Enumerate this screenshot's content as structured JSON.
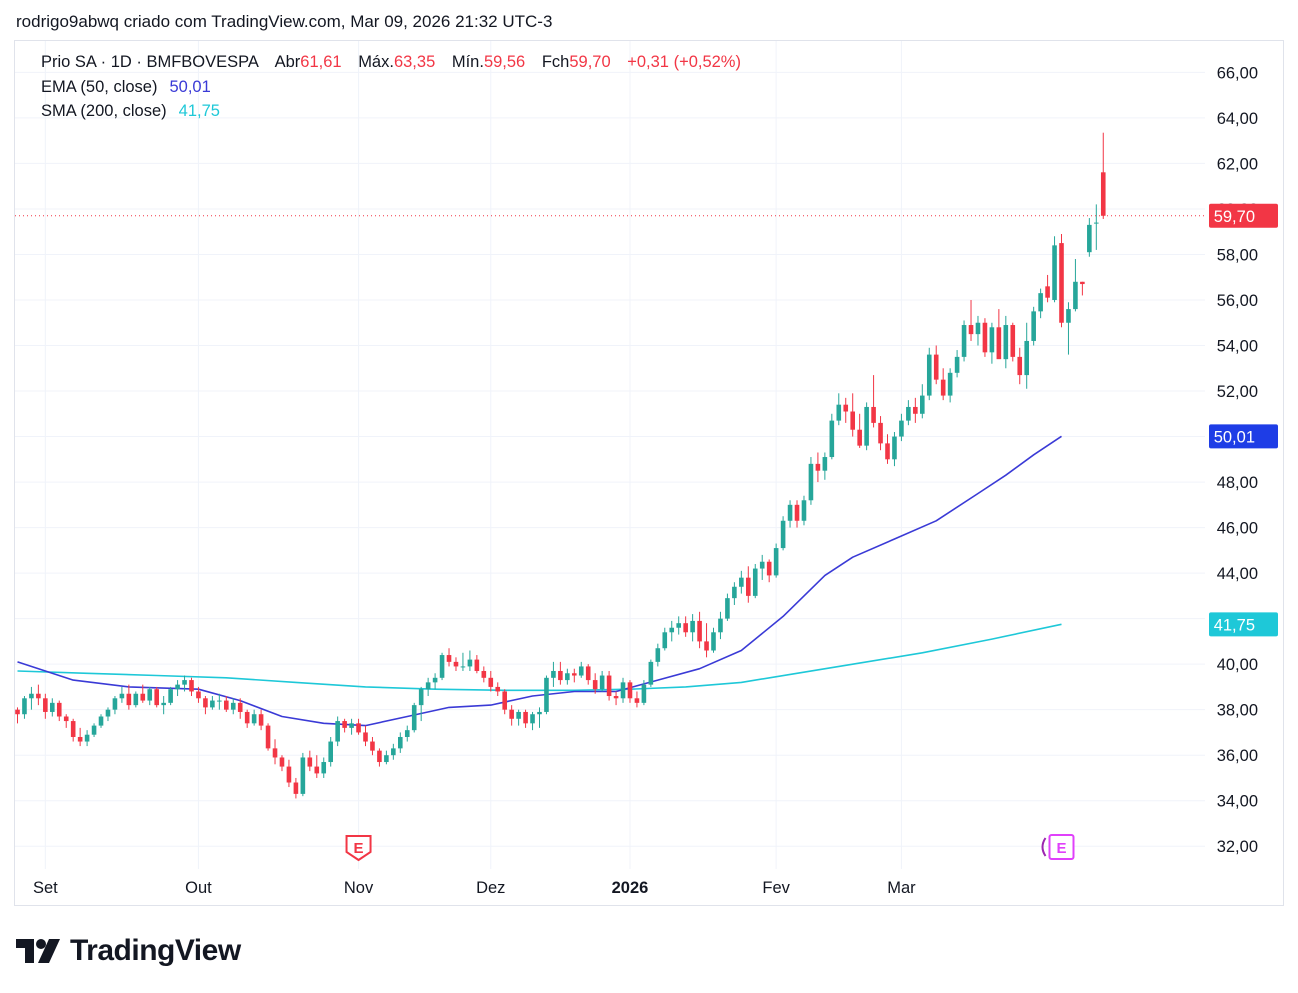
{
  "header": {
    "text": "rodrigo9abwq criado com TradingView.com, Mar 09, 2026 21:32 UTC-3"
  },
  "legend": {
    "symbol": "Prio SA · 1D · BMFBOVESPA",
    "open_label": "Abr",
    "open": "61,61",
    "high_label": "Máx.",
    "high": "63,35",
    "low_label": "Mín.",
    "low": "59,56",
    "close_label": "Fch",
    "close": "59,70",
    "change": "+0,31 (+0,52%)",
    "ema_label": "EMA (50, close)",
    "ema_value": "50,01",
    "sma_label": "SMA (200, close)",
    "sma_value": "41,75"
  },
  "brand": {
    "name": "TradingView"
  },
  "colors": {
    "up": "#26a69a",
    "down": "#f23645",
    "ema": "#3a3ad6",
    "sma": "#1ec8d8",
    "grid": "#f0f3fa",
    "axis_text": "#131722",
    "earnings_red": "#f23645",
    "earnings_pink": "#e040fb"
  },
  "chart_data": {
    "type": "candlestick",
    "title": "Prio SA · 1D · BMFBOVESPA",
    "y_axis": {
      "min": 31,
      "max": 66.5,
      "ticks": [
        "66,00",
        "64,00",
        "62,00",
        "60,00",
        "58,00",
        "56,00",
        "54,00",
        "52,00",
        "50,00",
        "48,00",
        "46,00",
        "44,00",
        "42,00",
        "40,00",
        "38,00",
        "36,00",
        "34,00",
        "32,00"
      ]
    },
    "x_labels": [
      {
        "label": "Set",
        "index": 4,
        "bold": false
      },
      {
        "label": "Out",
        "index": 26,
        "bold": false
      },
      {
        "label": "Nov",
        "index": 49,
        "bold": false
      },
      {
        "label": "Dez",
        "index": 68,
        "bold": false
      },
      {
        "label": "2026",
        "index": 88,
        "bold": true
      },
      {
        "label": "Fev",
        "index": 109,
        "bold": false
      },
      {
        "label": "Mar",
        "index": 127,
        "bold": false
      }
    ],
    "candles": [
      [
        38.0,
        38.1,
        37.4,
        37.8
      ],
      [
        37.8,
        38.6,
        37.6,
        38.5
      ],
      [
        38.5,
        39.0,
        38.0,
        38.7
      ],
      [
        38.7,
        39.1,
        38.2,
        38.5
      ],
      [
        38.5,
        38.7,
        37.6,
        37.9
      ],
      [
        37.9,
        38.5,
        37.7,
        38.3
      ],
      [
        38.3,
        38.4,
        37.5,
        37.7
      ],
      [
        37.7,
        37.8,
        37.2,
        37.5
      ],
      [
        37.5,
        37.6,
        36.6,
        36.8
      ],
      [
        36.8,
        37.2,
        36.4,
        36.6
      ],
      [
        36.6,
        37.1,
        36.4,
        36.9
      ],
      [
        36.9,
        37.4,
        36.8,
        37.3
      ],
      [
        37.3,
        37.8,
        37.2,
        37.7
      ],
      [
        37.7,
        38.1,
        37.5,
        38.0
      ],
      [
        38.0,
        38.6,
        37.8,
        38.5
      ],
      [
        38.5,
        39.0,
        38.3,
        38.7
      ],
      [
        38.7,
        39.1,
        38.0,
        38.2
      ],
      [
        38.2,
        38.8,
        38.1,
        38.7
      ],
      [
        38.7,
        39.1,
        38.3,
        38.4
      ],
      [
        38.4,
        39.0,
        38.2,
        38.9
      ],
      [
        38.9,
        39.0,
        38.1,
        38.2
      ],
      [
        38.2,
        38.6,
        37.8,
        38.3
      ],
      [
        38.3,
        39.0,
        38.2,
        38.9
      ],
      [
        38.9,
        39.3,
        38.6,
        39.1
      ],
      [
        39.1,
        39.5,
        38.8,
        39.3
      ],
      [
        39.3,
        39.4,
        38.6,
        38.8
      ],
      [
        38.8,
        39.0,
        38.3,
        38.5
      ],
      [
        38.5,
        38.6,
        37.8,
        38.1
      ],
      [
        38.1,
        38.6,
        38.0,
        38.4
      ],
      [
        38.4,
        38.7,
        38.0,
        38.4
      ],
      [
        38.4,
        38.6,
        37.9,
        38.0
      ],
      [
        38.0,
        38.5,
        37.8,
        38.3
      ],
      [
        38.3,
        38.5,
        37.6,
        37.9
      ],
      [
        37.9,
        38.0,
        37.2,
        37.4
      ],
      [
        37.4,
        38.0,
        37.3,
        37.8
      ],
      [
        37.8,
        38.0,
        37.1,
        37.3
      ],
      [
        37.3,
        37.4,
        36.2,
        36.3
      ],
      [
        36.3,
        36.7,
        35.6,
        35.9
      ],
      [
        35.9,
        36.0,
        35.3,
        35.5
      ],
      [
        35.5,
        35.8,
        34.6,
        34.8
      ],
      [
        34.8,
        35.0,
        34.1,
        34.3
      ],
      [
        34.3,
        36.1,
        34.2,
        35.9
      ],
      [
        35.9,
        36.2,
        35.3,
        35.5
      ],
      [
        35.5,
        36.0,
        35.0,
        35.2
      ],
      [
        35.2,
        35.9,
        35.0,
        35.7
      ],
      [
        35.7,
        36.8,
        35.5,
        36.6
      ],
      [
        36.6,
        37.7,
        36.4,
        37.5
      ],
      [
        37.5,
        37.6,
        37.0,
        37.2
      ],
      [
        37.2,
        37.6,
        36.9,
        37.4
      ],
      [
        37.4,
        37.6,
        36.9,
        37.0
      ],
      [
        37.0,
        37.3,
        36.4,
        36.6
      ],
      [
        36.6,
        36.8,
        36.0,
        36.2
      ],
      [
        36.2,
        36.3,
        35.5,
        35.7
      ],
      [
        35.7,
        36.2,
        35.6,
        36.0
      ],
      [
        36.0,
        36.5,
        35.8,
        36.3
      ],
      [
        36.3,
        37.0,
        36.1,
        36.8
      ],
      [
        36.8,
        37.3,
        36.6,
        37.1
      ],
      [
        37.1,
        38.3,
        37.0,
        38.2
      ],
      [
        38.2,
        39.0,
        37.5,
        38.9
      ],
      [
        38.9,
        39.4,
        38.6,
        39.2
      ],
      [
        39.2,
        39.6,
        38.9,
        39.4
      ],
      [
        39.4,
        40.5,
        39.3,
        40.4
      ],
      [
        40.4,
        40.7,
        39.9,
        40.1
      ],
      [
        40.1,
        40.3,
        39.7,
        39.9
      ],
      [
        39.9,
        40.5,
        39.7,
        39.9
      ],
      [
        39.9,
        40.6,
        39.7,
        40.2
      ],
      [
        40.2,
        40.4,
        39.6,
        39.7
      ],
      [
        39.7,
        39.9,
        39.2,
        39.4
      ],
      [
        39.4,
        39.7,
        38.8,
        39.0
      ],
      [
        39.0,
        39.2,
        38.6,
        38.8
      ],
      [
        38.8,
        38.9,
        37.8,
        38.0
      ],
      [
        38.0,
        38.2,
        37.3,
        37.6
      ],
      [
        37.6,
        38.0,
        37.3,
        37.9
      ],
      [
        37.9,
        38.0,
        37.2,
        37.4
      ],
      [
        37.4,
        37.9,
        37.1,
        37.8
      ],
      [
        37.8,
        38.1,
        37.2,
        37.9
      ],
      [
        37.9,
        39.5,
        37.8,
        39.4
      ],
      [
        39.4,
        40.1,
        39.0,
        39.7
      ],
      [
        39.7,
        40.1,
        39.1,
        39.3
      ],
      [
        39.3,
        39.8,
        39.1,
        39.6
      ],
      [
        39.6,
        39.8,
        39.2,
        39.5
      ],
      [
        39.5,
        40.1,
        39.4,
        39.9
      ],
      [
        39.9,
        40.0,
        39.1,
        39.3
      ],
      [
        39.3,
        39.6,
        38.7,
        38.9
      ],
      [
        38.9,
        39.7,
        38.8,
        39.5
      ],
      [
        39.5,
        39.7,
        38.4,
        38.6
      ],
      [
        38.6,
        38.8,
        38.2,
        38.5
      ],
      [
        38.5,
        39.4,
        38.3,
        39.2
      ],
      [
        39.2,
        39.3,
        38.3,
        38.5
      ],
      [
        38.5,
        38.8,
        38.1,
        38.3
      ],
      [
        38.3,
        39.3,
        38.2,
        39.1
      ],
      [
        39.1,
        40.2,
        39.0,
        40.1
      ],
      [
        40.1,
        40.9,
        39.9,
        40.7
      ],
      [
        40.7,
        41.6,
        40.6,
        41.4
      ],
      [
        41.4,
        41.9,
        41.0,
        41.6
      ],
      [
        41.6,
        42.1,
        41.3,
        41.8
      ],
      [
        41.8,
        42.1,
        41.2,
        41.4
      ],
      [
        41.4,
        42.2,
        41.0,
        41.9
      ],
      [
        41.9,
        42.3,
        40.7,
        41.0
      ],
      [
        41.0,
        41.8,
        40.3,
        40.6
      ],
      [
        40.6,
        41.6,
        40.5,
        41.4
      ],
      [
        41.4,
        42.3,
        41.1,
        42.0
      ],
      [
        42.0,
        43.1,
        41.9,
        42.9
      ],
      [
        42.9,
        43.6,
        42.6,
        43.4
      ],
      [
        43.4,
        44.1,
        43.1,
        43.8
      ],
      [
        43.8,
        44.3,
        42.7,
        43.0
      ],
      [
        43.0,
        44.4,
        42.9,
        44.2
      ],
      [
        44.2,
        44.8,
        43.7,
        44.5
      ],
      [
        44.5,
        44.6,
        43.6,
        43.9
      ],
      [
        43.9,
        45.3,
        43.8,
        45.1
      ],
      [
        45.1,
        46.5,
        45.0,
        46.3
      ],
      [
        46.3,
        47.2,
        46.0,
        47.0
      ],
      [
        47.0,
        47.2,
        46.0,
        46.3
      ],
      [
        46.3,
        47.4,
        46.1,
        47.2
      ],
      [
        47.2,
        49.1,
        47.0,
        48.8
      ],
      [
        48.8,
        49.3,
        48.0,
        48.5
      ],
      [
        48.5,
        49.3,
        48.1,
        49.1
      ],
      [
        49.1,
        51.0,
        49.0,
        50.7
      ],
      [
        50.7,
        51.9,
        50.5,
        51.4
      ],
      [
        51.4,
        51.7,
        50.6,
        51.1
      ],
      [
        51.1,
        51.9,
        50.0,
        50.3
      ],
      [
        50.3,
        51.0,
        49.5,
        49.6
      ],
      [
        49.6,
        51.5,
        49.4,
        51.3
      ],
      [
        51.3,
        52.7,
        50.4,
        50.6
      ],
      [
        50.6,
        50.9,
        49.4,
        49.7
      ],
      [
        49.7,
        50.1,
        48.8,
        49.0
      ],
      [
        49.0,
        50.2,
        48.7,
        50.0
      ],
      [
        50.0,
        51.0,
        49.8,
        50.7
      ],
      [
        50.7,
        51.6,
        50.5,
        51.3
      ],
      [
        51.3,
        51.7,
        50.6,
        51.0
      ],
      [
        51.0,
        52.3,
        50.8,
        51.8
      ],
      [
        51.8,
        53.9,
        51.6,
        53.6
      ],
      [
        53.6,
        54.0,
        52.3,
        52.5
      ],
      [
        52.5,
        53.0,
        51.6,
        51.8
      ],
      [
        51.8,
        53.0,
        51.5,
        52.8
      ],
      [
        52.8,
        53.8,
        52.6,
        53.5
      ],
      [
        53.5,
        55.1,
        53.3,
        54.9
      ],
      [
        54.9,
        56.0,
        54.2,
        54.5
      ],
      [
        54.5,
        55.3,
        54.0,
        55.0
      ],
      [
        55.0,
        55.2,
        53.5,
        53.7
      ],
      [
        53.7,
        55.0,
        53.2,
        54.8
      ],
      [
        54.8,
        55.6,
        53.5,
        53.4
      ],
      [
        53.4,
        55.3,
        53.0,
        54.9
      ],
      [
        54.9,
        55.0,
        53.3,
        53.5
      ],
      [
        53.5,
        53.9,
        52.3,
        52.7
      ],
      [
        52.7,
        55.0,
        52.1,
        54.2
      ],
      [
        54.2,
        55.7,
        54.0,
        55.5
      ],
      [
        55.5,
        56.5,
        55.2,
        56.3
      ],
      [
        56.6,
        57.1,
        55.9,
        56.1
      ],
      [
        56.0,
        58.8,
        55.9,
        58.4
      ],
      [
        58.5,
        58.9,
        54.8,
        55.0
      ],
      [
        55.0,
        55.9,
        53.6,
        55.6
      ],
      [
        55.6,
        57.8,
        55.5,
        56.8
      ],
      [
        56.8,
        56.8,
        56.2,
        56.7
      ],
      [
        58.1,
        59.6,
        57.9,
        59.3
      ],
      [
        59.4,
        60.2,
        58.2,
        59.4
      ],
      [
        61.61,
        63.35,
        59.56,
        59.7
      ]
    ],
    "ema_50": {
      "label": "EMA (50, close)",
      "last": 50.01,
      "points": [
        [
          0,
          40.1
        ],
        [
          8,
          39.3
        ],
        [
          16,
          39.0
        ],
        [
          26,
          38.9
        ],
        [
          32,
          38.4
        ],
        [
          38,
          37.7
        ],
        [
          44,
          37.4
        ],
        [
          50,
          37.3
        ],
        [
          56,
          37.7
        ],
        [
          62,
          38.1
        ],
        [
          68,
          38.2
        ],
        [
          74,
          38.6
        ],
        [
          80,
          38.8
        ],
        [
          86,
          38.8
        ],
        [
          92,
          39.3
        ],
        [
          98,
          39.8
        ],
        [
          104,
          40.6
        ],
        [
          110,
          42.1
        ],
        [
          116,
          43.9
        ],
        [
          120,
          44.7
        ],
        [
          126,
          45.5
        ],
        [
          132,
          46.3
        ],
        [
          138,
          47.5
        ],
        [
          142,
          48.3
        ],
        [
          146,
          49.2
        ],
        [
          150,
          50.01
        ]
      ]
    },
    "sma_200": {
      "label": "SMA (200, close)",
      "last": 41.75,
      "points": [
        [
          0,
          39.7
        ],
        [
          10,
          39.6
        ],
        [
          20,
          39.5
        ],
        [
          30,
          39.4
        ],
        [
          40,
          39.2
        ],
        [
          50,
          39.0
        ],
        [
          60,
          38.9
        ],
        [
          70,
          38.85
        ],
        [
          80,
          38.85
        ],
        [
          88,
          38.9
        ],
        [
          96,
          39.0
        ],
        [
          104,
          39.2
        ],
        [
          112,
          39.6
        ],
        [
          120,
          40.0
        ],
        [
          130,
          40.5
        ],
        [
          140,
          41.1
        ],
        [
          150,
          41.75
        ]
      ]
    },
    "last_price": 59.7,
    "last_price_label": "59,70",
    "ema_label_value": "50,01",
    "sma_label_value": "41,75",
    "earnings_markers": [
      {
        "index": 49,
        "label": "E",
        "style": "red"
      },
      {
        "index": 150,
        "label": "E",
        "style": "pink"
      }
    ]
  }
}
